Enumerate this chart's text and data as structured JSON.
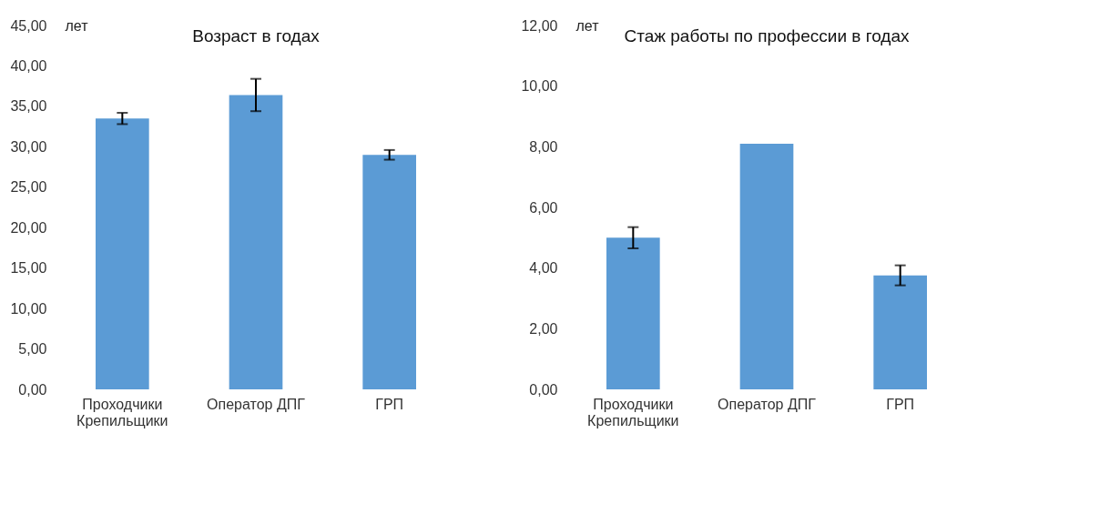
{
  "chart_data": [
    {
      "type": "bar",
      "title": "Возраст в годах",
      "ylabel": "лет",
      "categories": [
        "Проходчики\nКрепильщики",
        "Оператор ДПГ",
        "ГРП"
      ],
      "values": [
        33.5,
        36.4,
        29.0
      ],
      "errors": [
        0.7,
        2.0,
        0.6
      ],
      "color": "#5b9bd5",
      "ylim": [
        0,
        45
      ],
      "yticks": [
        {
          "value": 0,
          "label": "0,00"
        },
        {
          "value": 5,
          "label": "5,00"
        },
        {
          "value": 10,
          "label": "10,00"
        },
        {
          "value": 15,
          "label": "15,00"
        },
        {
          "value": 20,
          "label": "20,00"
        },
        {
          "value": 25,
          "label": "25,00"
        },
        {
          "value": 30,
          "label": "30,00"
        },
        {
          "value": 35,
          "label": "35,00"
        },
        {
          "value": 40,
          "label": "40,00"
        },
        {
          "value": 45,
          "label": "45,00"
        }
      ],
      "grid": false
    },
    {
      "type": "bar",
      "title": "Стаж работы по профессии в годах",
      "ylabel": "лет",
      "categories": [
        "Проходчики\nКрепильщики",
        "Оператор ДПГ",
        "ГРП"
      ],
      "values": [
        5.0,
        8.1,
        3.76
      ],
      "errors": [
        0.35,
        null,
        0.33
      ],
      "color": "#5b9bd5",
      "ylim": [
        0,
        12
      ],
      "yticks": [
        {
          "value": 0,
          "label": "0,00"
        },
        {
          "value": 2,
          "label": "2,00"
        },
        {
          "value": 4,
          "label": "4,00"
        },
        {
          "value": 6,
          "label": "6,00"
        },
        {
          "value": 8,
          "label": "8,00"
        },
        {
          "value": 10,
          "label": "10,00"
        },
        {
          "value": 12,
          "label": "12,00"
        }
      ],
      "grid": false
    }
  ]
}
